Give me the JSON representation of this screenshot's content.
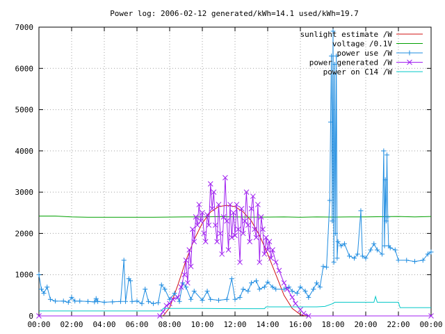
{
  "chart_data": {
    "type": "line",
    "title": "Power log: 2006-02-12 generated/kWh=14.1 used/kWh=19.7",
    "xlabel": "",
    "ylabel": "",
    "xlim": [
      0,
      24
    ],
    "ylim": [
      0,
      7000
    ],
    "x_tick_labels": [
      "00:00",
      "02:00",
      "04:00",
      "06:00",
      "08:00",
      "10:00",
      "12:00",
      "14:00",
      "16:00",
      "18:00",
      "20:00",
      "22:00",
      "00:00"
    ],
    "y_tick_labels": [
      "0",
      "1000",
      "2000",
      "3000",
      "4000",
      "5000",
      "6000",
      "7000"
    ],
    "y_ticks": [
      0,
      1000,
      2000,
      3000,
      4000,
      5000,
      6000,
      7000
    ],
    "grid": true,
    "legend_position": "top-right",
    "series": [
      {
        "name": "sunlight estimate /W",
        "color": "#d01010",
        "marker": "none",
        "points": [
          [
            7.6,
            0
          ],
          [
            8.0,
            200
          ],
          [
            8.5,
            750
          ],
          [
            9.0,
            1350
          ],
          [
            9.5,
            1850
          ],
          [
            10.0,
            2250
          ],
          [
            10.5,
            2520
          ],
          [
            11.0,
            2650
          ],
          [
            11.5,
            2680
          ],
          [
            12.0,
            2650
          ],
          [
            12.5,
            2520
          ],
          [
            13.0,
            2300
          ],
          [
            13.5,
            1950
          ],
          [
            14.0,
            1500
          ],
          [
            14.5,
            1000
          ],
          [
            15.0,
            500
          ],
          [
            15.5,
            180
          ],
          [
            16.0,
            30
          ],
          [
            16.3,
            0
          ]
        ]
      },
      {
        "name": "voltage /0.1V",
        "color": "#00a000",
        "marker": "none",
        "points": [
          [
            0,
            2420
          ],
          [
            1.0,
            2420
          ],
          [
            1.5,
            2410
          ],
          [
            2.0,
            2400
          ],
          [
            3.0,
            2390
          ],
          [
            4.0,
            2390
          ],
          [
            5.0,
            2390
          ],
          [
            6.0,
            2390
          ],
          [
            7.0,
            2390
          ],
          [
            8.0,
            2395
          ],
          [
            9.0,
            2400
          ],
          [
            10.0,
            2400
          ],
          [
            11.0,
            2405
          ],
          [
            12.0,
            2400
          ],
          [
            13.0,
            2395
          ],
          [
            14.0,
            2395
          ],
          [
            15.0,
            2400
          ],
          [
            16.0,
            2390
          ],
          [
            17.0,
            2400
          ],
          [
            18.0,
            2395
          ],
          [
            19.0,
            2400
          ],
          [
            20.0,
            2400
          ],
          [
            21.0,
            2405
          ],
          [
            22.0,
            2410
          ],
          [
            23.0,
            2400
          ],
          [
            24.0,
            2410
          ]
        ]
      },
      {
        "name": "power use /W",
        "color": "#1e8ce0",
        "marker": "plus",
        "points": [
          [
            0,
            1000
          ],
          [
            0.15,
            650
          ],
          [
            0.3,
            550
          ],
          [
            0.5,
            700
          ],
          [
            0.7,
            400
          ],
          [
            1.0,
            360
          ],
          [
            1.5,
            360
          ],
          [
            1.8,
            330
          ],
          [
            2.0,
            450
          ],
          [
            2.2,
            360
          ],
          [
            2.5,
            360
          ],
          [
            3.0,
            350
          ],
          [
            3.4,
            340
          ],
          [
            3.5,
            420
          ],
          [
            3.6,
            350
          ],
          [
            4.0,
            330
          ],
          [
            4.5,
            340
          ],
          [
            5.0,
            350
          ],
          [
            5.2,
            1350
          ],
          [
            5.3,
            350
          ],
          [
            5.5,
            900
          ],
          [
            5.6,
            850
          ],
          [
            5.7,
            350
          ],
          [
            6.0,
            360
          ],
          [
            6.3,
            300
          ],
          [
            6.5,
            650
          ],
          [
            6.7,
            350
          ],
          [
            7.0,
            300
          ],
          [
            7.3,
            320
          ],
          [
            7.5,
            750
          ],
          [
            7.7,
            650
          ],
          [
            8.0,
            400
          ],
          [
            8.3,
            550
          ],
          [
            8.6,
            350
          ],
          [
            8.8,
            800
          ],
          [
            9.0,
            700
          ],
          [
            9.3,
            400
          ],
          [
            9.5,
            600
          ],
          [
            10.0,
            380
          ],
          [
            10.3,
            600
          ],
          [
            10.5,
            400
          ],
          [
            11.0,
            380
          ],
          [
            11.5,
            400
          ],
          [
            11.8,
            900
          ],
          [
            12.0,
            400
          ],
          [
            12.3,
            450
          ],
          [
            12.5,
            650
          ],
          [
            12.8,
            600
          ],
          [
            13.0,
            800
          ],
          [
            13.3,
            850
          ],
          [
            13.5,
            650
          ],
          [
            13.8,
            700
          ],
          [
            14.0,
            820
          ],
          [
            14.3,
            700
          ],
          [
            14.5,
            650
          ],
          [
            15.0,
            650
          ],
          [
            15.3,
            700
          ],
          [
            15.5,
            600
          ],
          [
            15.8,
            550
          ],
          [
            16.0,
            700
          ],
          [
            16.3,
            600
          ],
          [
            16.5,
            450
          ],
          [
            16.8,
            650
          ],
          [
            17.0,
            800
          ],
          [
            17.2,
            700
          ],
          [
            17.4,
            1200
          ],
          [
            17.6,
            1180
          ],
          [
            17.8,
            2800
          ],
          [
            17.85,
            4700
          ],
          [
            17.9,
            6300
          ],
          [
            17.95,
            2300
          ],
          [
            18.0,
            6900
          ],
          [
            18.05,
            1300
          ],
          [
            18.1,
            6100
          ],
          [
            18.15,
            2000
          ],
          [
            18.2,
            6300
          ],
          [
            18.25,
            1400
          ],
          [
            18.3,
            1800
          ],
          [
            18.5,
            1700
          ],
          [
            18.7,
            1750
          ],
          [
            19.0,
            1450
          ],
          [
            19.3,
            1400
          ],
          [
            19.5,
            1500
          ],
          [
            19.7,
            2550
          ],
          [
            19.8,
            1450
          ],
          [
            20.0,
            1400
          ],
          [
            20.3,
            1600
          ],
          [
            20.5,
            1750
          ],
          [
            20.7,
            1600
          ],
          [
            21.0,
            1500
          ],
          [
            21.1,
            4000
          ],
          [
            21.15,
            1700
          ],
          [
            21.2,
            3300
          ],
          [
            21.25,
            2300
          ],
          [
            21.3,
            3900
          ],
          [
            21.35,
            2400
          ],
          [
            21.4,
            1700
          ],
          [
            21.5,
            1650
          ],
          [
            21.8,
            1600
          ],
          [
            22.0,
            1350
          ],
          [
            22.5,
            1350
          ],
          [
            23.0,
            1320
          ],
          [
            23.5,
            1350
          ],
          [
            23.8,
            1500
          ],
          [
            24.0,
            1550
          ]
        ]
      },
      {
        "name": "power generated /W",
        "color": "#a020f0",
        "marker": "cross",
        "points": [
          [
            0,
            0
          ],
          [
            7.4,
            0
          ],
          [
            7.6,
            100
          ],
          [
            7.8,
            250
          ],
          [
            8.0,
            300
          ],
          [
            8.2,
            400
          ],
          [
            8.5,
            450
          ],
          [
            8.7,
            700
          ],
          [
            8.9,
            1000
          ],
          [
            9.0,
            1350
          ],
          [
            9.1,
            800
          ],
          [
            9.2,
            1600
          ],
          [
            9.3,
            1200
          ],
          [
            9.4,
            2100
          ],
          [
            9.5,
            1800
          ],
          [
            9.6,
            2400
          ],
          [
            9.7,
            2200
          ],
          [
            9.8,
            2700
          ],
          [
            9.9,
            2300
          ],
          [
            10.0,
            2500
          ],
          [
            10.1,
            2000
          ],
          [
            10.2,
            1800
          ],
          [
            10.3,
            2450
          ],
          [
            10.4,
            2200
          ],
          [
            10.5,
            3200
          ],
          [
            10.6,
            2600
          ],
          [
            10.7,
            3000
          ],
          [
            10.8,
            2200
          ],
          [
            10.9,
            1800
          ],
          [
            11.0,
            2700
          ],
          [
            11.1,
            2000
          ],
          [
            11.2,
            1500
          ],
          [
            11.3,
            2400
          ],
          [
            11.4,
            3350
          ],
          [
            11.5,
            2300
          ],
          [
            11.6,
            1600
          ],
          [
            11.7,
            2700
          ],
          [
            11.8,
            1900
          ],
          [
            11.9,
            2500
          ],
          [
            12.0,
            1950
          ],
          [
            12.1,
            2700
          ],
          [
            12.2,
            2100
          ],
          [
            12.3,
            1300
          ],
          [
            12.4,
            2600
          ],
          [
            12.5,
            2000
          ],
          [
            12.6,
            2300
          ],
          [
            12.7,
            3000
          ],
          [
            12.8,
            2200
          ],
          [
            12.9,
            1800
          ],
          [
            13.0,
            2600
          ],
          [
            13.1,
            2900
          ],
          [
            13.2,
            2100
          ],
          [
            13.3,
            1900
          ],
          [
            13.4,
            2700
          ],
          [
            13.5,
            1300
          ],
          [
            13.6,
            2400
          ],
          [
            13.7,
            2100
          ],
          [
            13.8,
            1500
          ],
          [
            13.9,
            1900
          ],
          [
            14.0,
            1600
          ],
          [
            14.1,
            1800
          ],
          [
            14.2,
            1400
          ],
          [
            14.3,
            1600
          ],
          [
            14.5,
            1300
          ],
          [
            14.7,
            1100
          ],
          [
            15.0,
            800
          ],
          [
            15.2,
            650
          ],
          [
            15.5,
            450
          ],
          [
            15.7,
            300
          ],
          [
            16.0,
            150
          ],
          [
            16.2,
            60
          ],
          [
            16.5,
            0
          ],
          [
            24.0,
            0
          ]
        ]
      },
      {
        "name": "power on C14 /W",
        "color": "#00c8c8",
        "marker": "none",
        "points": [
          [
            0,
            120
          ],
          [
            7.5,
            120
          ],
          [
            7.6,
            180
          ],
          [
            10.0,
            180
          ],
          [
            12.0,
            175
          ],
          [
            13.8,
            175
          ],
          [
            13.9,
            220
          ],
          [
            15.0,
            220
          ],
          [
            16.0,
            220
          ],
          [
            17.0,
            220
          ],
          [
            17.5,
            230
          ],
          [
            18.0,
            300
          ],
          [
            18.1,
            330
          ],
          [
            19.0,
            330
          ],
          [
            20.5,
            330
          ],
          [
            20.6,
            470
          ],
          [
            20.7,
            330
          ],
          [
            22.0,
            330
          ],
          [
            22.1,
            200
          ],
          [
            24.0,
            200
          ]
        ]
      }
    ]
  }
}
